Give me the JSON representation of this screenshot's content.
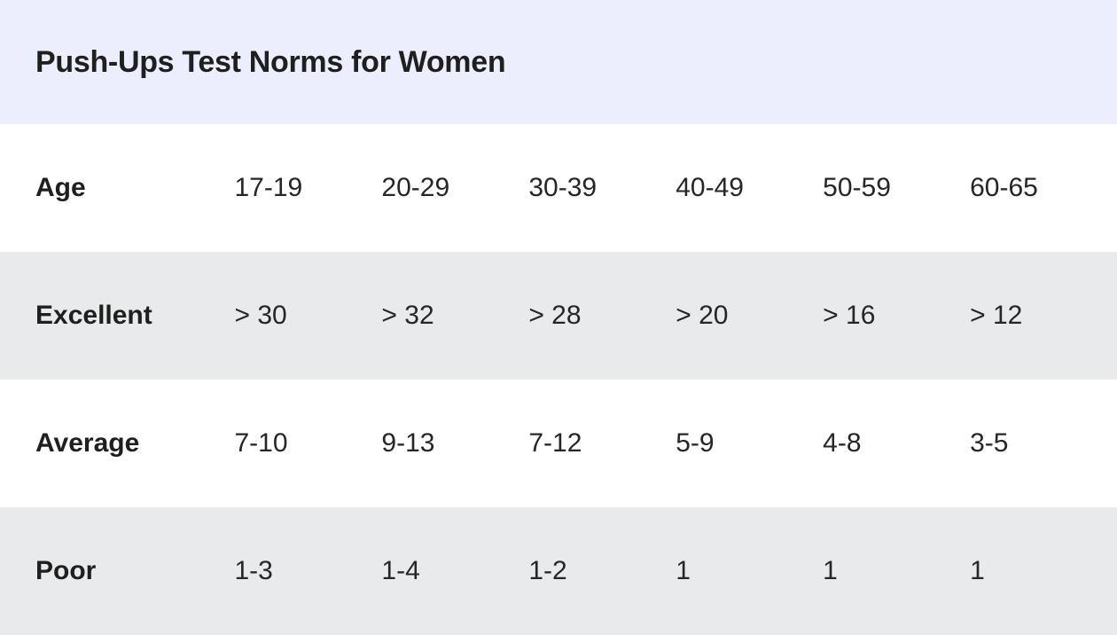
{
  "title": "Push-Ups Test Norms for Women",
  "rows": [
    {
      "label": "Age",
      "cells": [
        "17-19",
        "20-29",
        "30-39",
        "40-49",
        "50-59",
        "60-65"
      ]
    },
    {
      "label": "Excellent",
      "cells": [
        "> 30",
        "> 32",
        "> 28",
        "> 20",
        "> 16",
        "> 12"
      ]
    },
    {
      "label": "Average",
      "cells": [
        "7-10",
        "9-13",
        "7-12",
        "5-9",
        "4-8",
        "3-5"
      ]
    },
    {
      "label": "Poor",
      "cells": [
        "1-3",
        "1-4",
        "1-2",
        "1",
        "1",
        "1"
      ]
    }
  ],
  "colors": {
    "title_background": "#ebeefd",
    "shaded_row": "#e9eaec",
    "text": "#222222"
  }
}
